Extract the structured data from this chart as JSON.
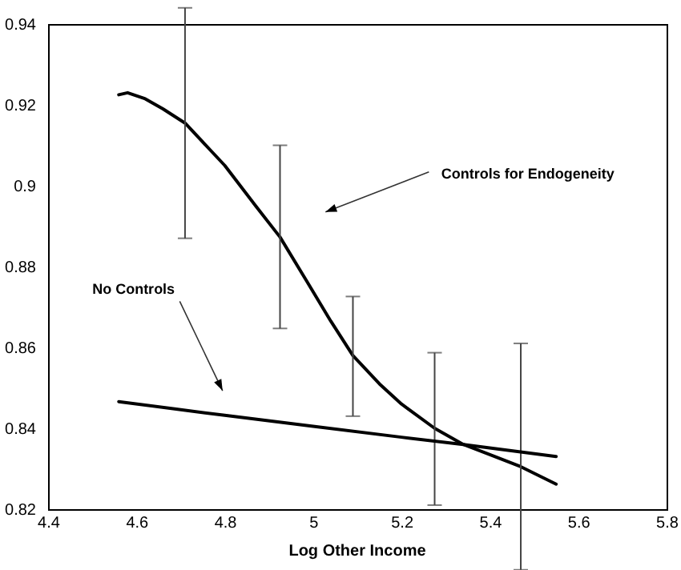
{
  "chart_data": {
    "type": "line",
    "xlabel": "Log Other Income",
    "xlim": [
      4.4,
      5.8
    ],
    "xticks": [
      4.4,
      4.6,
      4.8,
      5,
      5.2,
      5.4,
      5.6,
      5.8
    ],
    "ylim": [
      0.82,
      0.94
    ],
    "yticks": [
      0.82,
      0.84,
      0.86,
      0.88,
      0.9,
      0.92,
      0.94
    ],
    "grid": false,
    "annotations": [
      "Controls for Endogeneity",
      "No Controls"
    ],
    "series": [
      {
        "color": "#000000",
        "x": [
          4.56,
          4.58,
          4.62,
          4.66,
          4.71,
          4.8,
          4.87,
          4.925,
          4.985,
          5.04,
          5.09,
          5.15,
          5.2,
          5.275,
          5.34,
          5.4,
          5.47,
          5.55
        ],
        "values": [
          0.9225,
          0.923,
          0.9215,
          0.919,
          0.9155,
          0.905,
          0.895,
          0.8873,
          0.8765,
          0.8665,
          0.858,
          0.851,
          0.846,
          0.84,
          0.836,
          0.8335,
          0.8305,
          0.8262
        ],
        "errors": [
          null,
          null,
          null,
          null,
          [
            0.887,
            0.944
          ],
          null,
          null,
          [
            0.8647,
            0.91
          ],
          null,
          null,
          [
            0.843,
            0.8726
          ],
          null,
          null,
          [
            0.821,
            0.8587
          ],
          null,
          null,
          [
            0.805,
            0.861
          ],
          null
        ]
      },
      {
        "color": "#000000",
        "x": [
          4.56,
          4.8,
          5.0,
          5.2,
          5.34,
          5.55
        ],
        "values": [
          0.8466,
          0.8432,
          0.8405,
          0.8378,
          0.836,
          0.833
        ]
      }
    ]
  }
}
